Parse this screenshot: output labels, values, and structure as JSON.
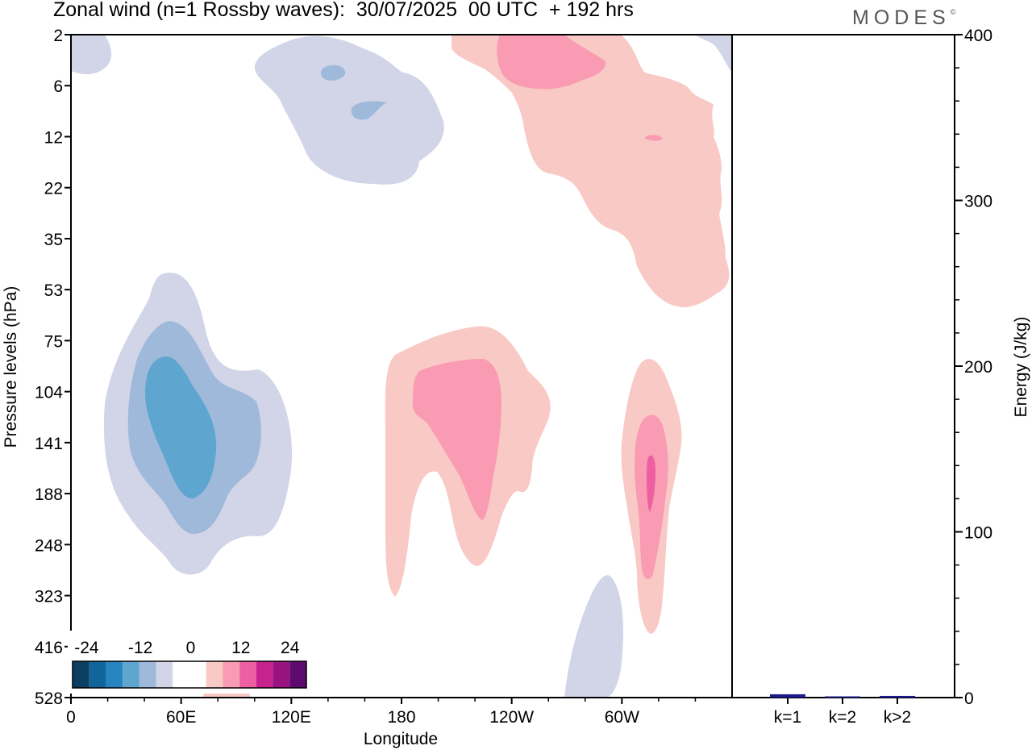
{
  "title": "Zonal wind (n=1 Rossby waves):  30/07/2025  00 UTC  + 192 hrs",
  "logo": "MODES",
  "logo_mark": "©",
  "chart_data": [
    {
      "type": "heatmap",
      "title": "Zonal wind (n=1 Rossby waves)",
      "xlabel": "Longitude",
      "ylabel": "Pressure levels (hPa)",
      "x_ticks": [
        "0",
        "60E",
        "120E",
        "180",
        "120W",
        "60W"
      ],
      "x_tick_degrees": [
        0,
        60,
        120,
        180,
        240,
        300
      ],
      "xlim": [
        0,
        360
      ],
      "y_ticks": [
        "2",
        "6",
        "12",
        "22",
        "35",
        "53",
        "75",
        "104",
        "141",
        "188",
        "248",
        "323",
        "416",
        "528"
      ],
      "colorbar": {
        "labels": [
          "-24",
          "-12",
          "0",
          "12",
          "24"
        ],
        "levels": [
          -30,
          -25,
          -20,
          -15,
          -10,
          -5,
          0,
          5,
          10,
          15,
          20,
          25,
          30
        ],
        "colors": [
          "#0c3e62",
          "#12659a",
          "#2684c0",
          "#5ea6cf",
          "#9fb9da",
          "#d2d4e8",
          "#ffffff",
          "#ffffff",
          "#f9c9c6",
          "#f99bb3",
          "#ee5fa2",
          "#c7238e",
          "#98137f",
          "#5e0a6e"
        ]
      },
      "features": [
        {
          "region": "western Indian Ocean, 104–188 hPa",
          "sign": "negative",
          "min_approx": -15
        },
        {
          "region": "near dateline to 120W, 104–188 hPa",
          "sign": "positive",
          "max_approx": 12
        },
        {
          "region": "around 60W, 141–248 hPa",
          "sign": "positive",
          "max_approx": 17
        },
        {
          "region": "120E–180, 2–22 hPa",
          "sign": "negative",
          "min_approx": -8
        },
        {
          "region": "150W–60W, 2–53 hPa",
          "sign": "positive",
          "max_approx": 10
        }
      ]
    },
    {
      "type": "bar",
      "ylabel": "Energy (J/kg)",
      "ylim": [
        0,
        400
      ],
      "y_ticks": [
        "0",
        "100",
        "200",
        "300",
        "400"
      ],
      "categories": [
        "k=1",
        "k=2",
        "k>2"
      ],
      "values": [
        2,
        0.5,
        1
      ],
      "bar_color": "#1a1a8c"
    }
  ]
}
